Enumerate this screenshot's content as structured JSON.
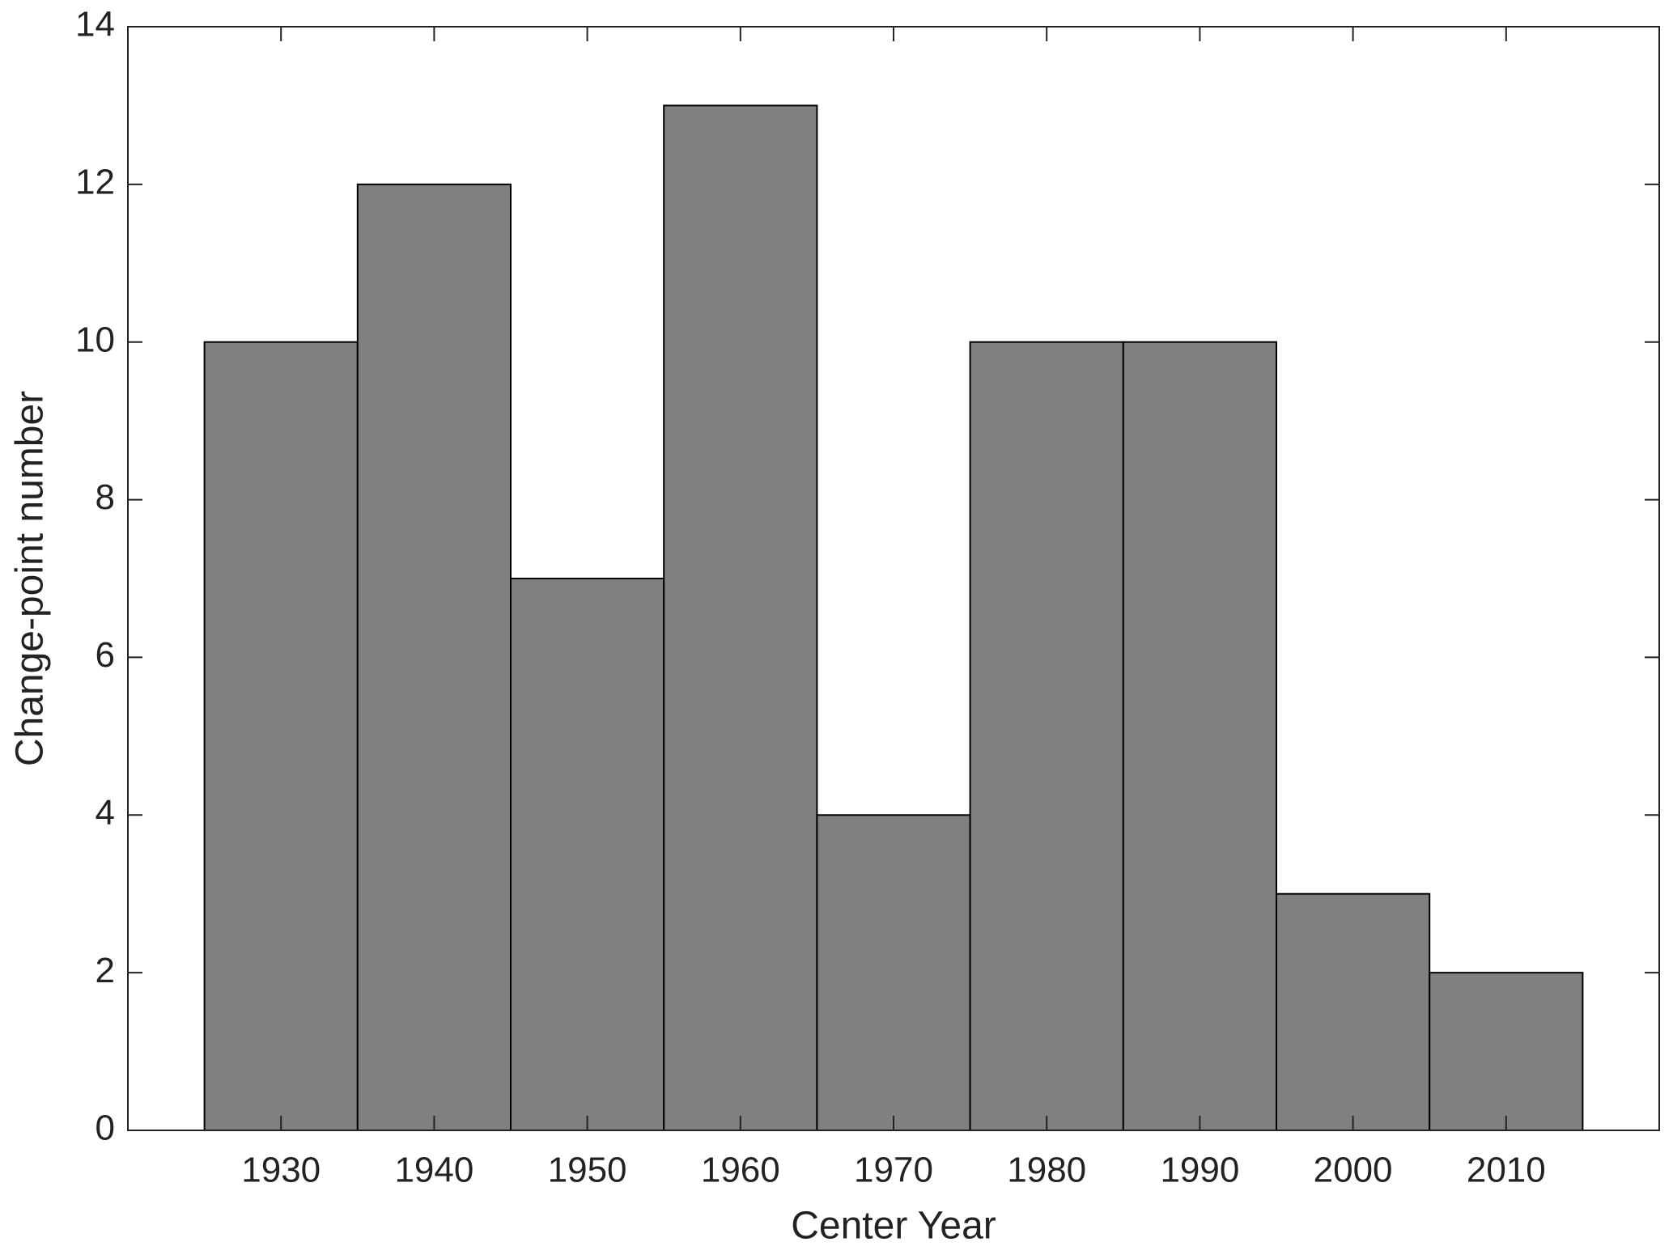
{
  "chart_data": {
    "type": "histogram",
    "x_label": "Center Year",
    "y_label": "Change-point number",
    "bins": [
      1925,
      1935,
      1945,
      1955,
      1965,
      1975,
      1985,
      1995,
      2005,
      2015
    ],
    "values": [
      10,
      12,
      7,
      13,
      4,
      10,
      10,
      3,
      2
    ],
    "color": "#808080",
    "xlim": [
      1920,
      2020
    ],
    "xticks": [
      1930,
      1940,
      1950,
      1960,
      1970,
      1980,
      1990,
      2000,
      2010
    ],
    "ylim": [
      0,
      14
    ],
    "yticks": [
      0,
      2,
      4,
      6,
      8,
      10,
      12,
      14
    ],
    "grid": false
  }
}
